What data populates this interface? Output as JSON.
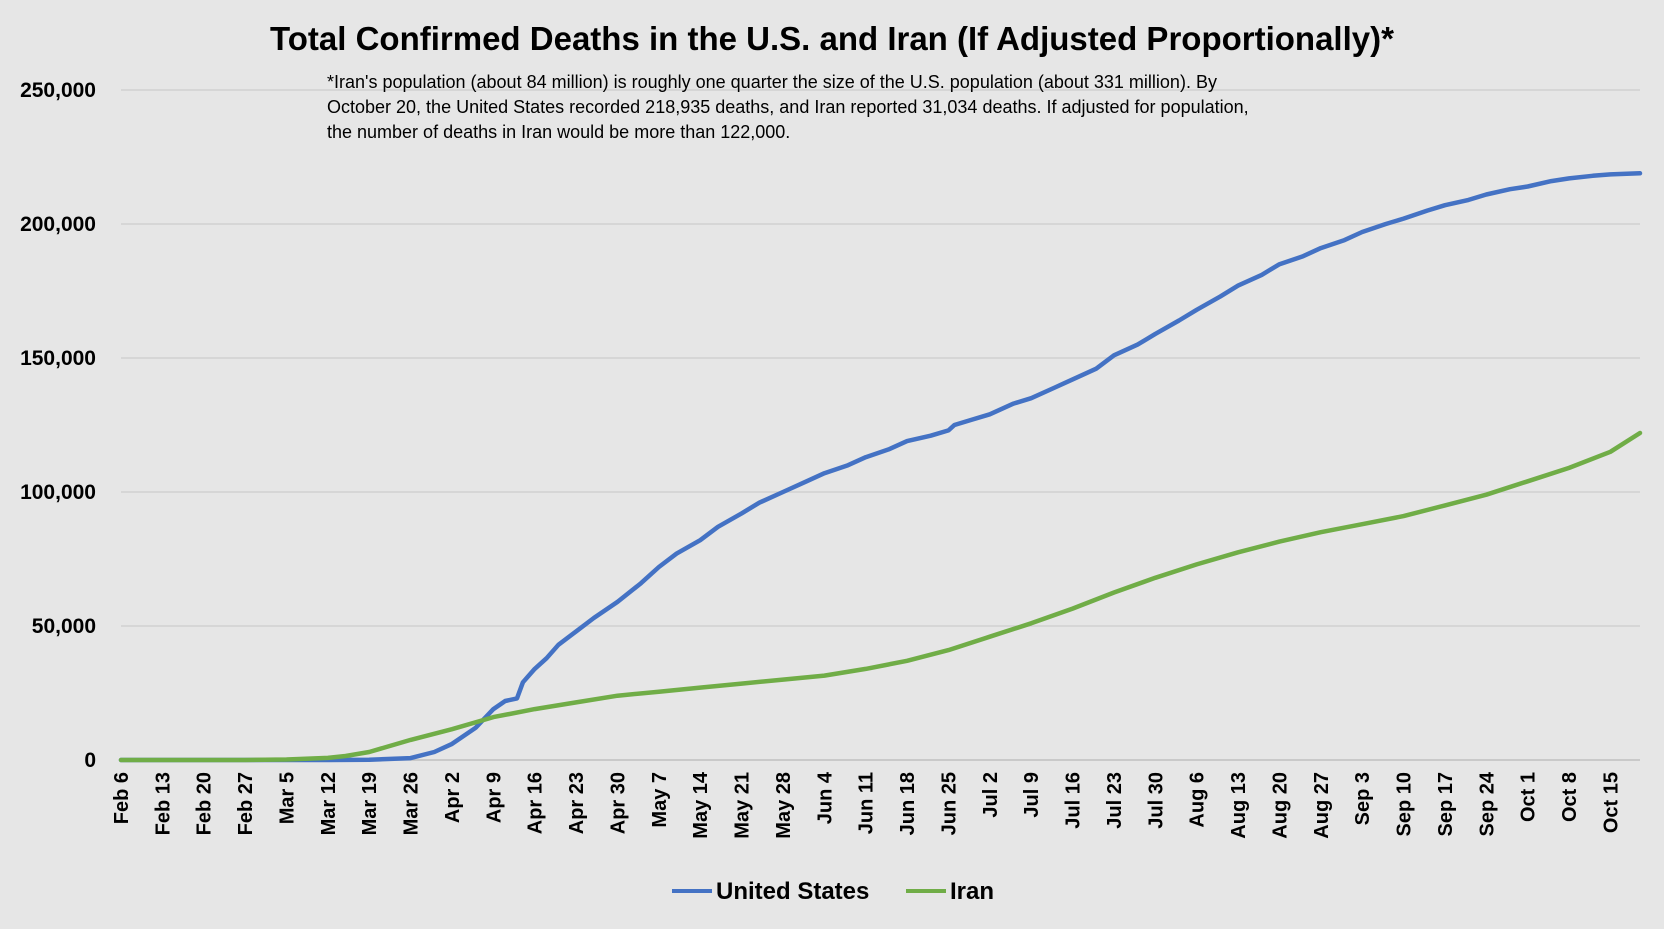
{
  "chart_data": {
    "type": "line",
    "title": "Total Confirmed Deaths in the U.S. and Iran (If Adjusted Proportionally)*",
    "annotation": [
      "*Iran's population (about 84 million) is roughly one quarter the size of the U.S. population (about 331 million). By",
      "October 20, the United States recorded 218,935 deaths, and Iran reported 31,034 deaths. If adjusted for population,",
      "the number of deaths in Iran would be more than 122,000."
    ],
    "xlabel": "",
    "ylabel": "",
    "ylim": [
      0,
      250000
    ],
    "yticks": [
      0,
      50000,
      100000,
      150000,
      200000,
      250000
    ],
    "ytick_labels": [
      "0",
      "50,000",
      "100,000",
      "150,000",
      "200,000",
      "250,000"
    ],
    "x_range_days": [
      0,
      257
    ],
    "x_note": "x values are days since Feb 6",
    "xticks": [
      0,
      7,
      14,
      21,
      28,
      35,
      42,
      49,
      56,
      63,
      70,
      77,
      84,
      91,
      98,
      105,
      112,
      119,
      126,
      133,
      140,
      147,
      154,
      161,
      168,
      175,
      182,
      189,
      196,
      203,
      210,
      217,
      224,
      231,
      238,
      245,
      252
    ],
    "xtick_labels": [
      "Feb 6",
      "Feb 13",
      "Feb 20",
      "Feb 27",
      "Mar 5",
      "Mar 12",
      "Mar 19",
      "Mar 26",
      "Apr 2",
      "Apr 9",
      "Apr 16",
      "Apr 23",
      "Apr 30",
      "May 7",
      "May 14",
      "May 21",
      "May 28",
      "Jun 4",
      "Jun 11",
      "Jun 18",
      "Jun 25",
      "Jul 2",
      "Jul 9",
      "Jul 16",
      "Jul 23",
      "Jul 30",
      "Aug 6",
      "Aug 13",
      "Aug 20",
      "Aug 27",
      "Sep 3",
      "Sep 10",
      "Sep 17",
      "Sep 24",
      "Oct 1",
      "Oct 8",
      "Oct 15"
    ],
    "grid": true,
    "legend_position": "bottom",
    "series": [
      {
        "name": "United States",
        "color": "#4472c4",
        "x": [
          0,
          28,
          35,
          42,
          49,
          53,
          56,
          60,
          63,
          65,
          67,
          68,
          70,
          72,
          74,
          77,
          80,
          84,
          88,
          91,
          94,
          98,
          101,
          105,
          108,
          112,
          116,
          119,
          123,
          126,
          130,
          133,
          137,
          140,
          141,
          144,
          147,
          151,
          154,
          158,
          161,
          165,
          168,
          172,
          175,
          179,
          182,
          186,
          189,
          193,
          196,
          200,
          203,
          207,
          210,
          214,
          217,
          221,
          224,
          228,
          231,
          235,
          238,
          242,
          245,
          249,
          252,
          257
        ],
        "values": [
          0,
          0,
          0,
          100,
          700,
          3000,
          6000,
          12000,
          19000,
          22000,
          23000,
          29000,
          34000,
          38000,
          43000,
          48000,
          53000,
          59000,
          66000,
          72000,
          77000,
          82000,
          87000,
          92000,
          96000,
          100000,
          104000,
          107000,
          110000,
          113000,
          116000,
          119000,
          121000,
          123000,
          125000,
          127000,
          129000,
          133000,
          135000,
          139000,
          142000,
          146000,
          151000,
          155000,
          159000,
          164000,
          168000,
          173000,
          177000,
          181000,
          185000,
          188000,
          191000,
          194000,
          197000,
          200000,
          202000,
          205000,
          207000,
          209000,
          211000,
          213000,
          214000,
          216000,
          217000,
          218000,
          218500,
          218935
        ]
      },
      {
        "name": "Iran",
        "color": "#70ad47",
        "x": [
          0,
          21,
          28,
          35,
          38,
          42,
          49,
          56,
          63,
          70,
          77,
          84,
          91,
          98,
          105,
          112,
          119,
          126,
          133,
          140,
          147,
          154,
          161,
          168,
          175,
          182,
          189,
          196,
          203,
          210,
          217,
          224,
          231,
          238,
          245,
          252,
          257
        ],
        "values": [
          0,
          0,
          200,
          800,
          1500,
          3000,
          7500,
          11500,
          16000,
          19000,
          21500,
          24000,
          25500,
          27000,
          28500,
          30000,
          31500,
          34000,
          37000,
          41000,
          46000,
          51000,
          56500,
          62500,
          68000,
          73000,
          77500,
          81500,
          85000,
          88000,
          91000,
          95000,
          99000,
          104000,
          109000,
          115000,
          122000
        ]
      }
    ]
  }
}
